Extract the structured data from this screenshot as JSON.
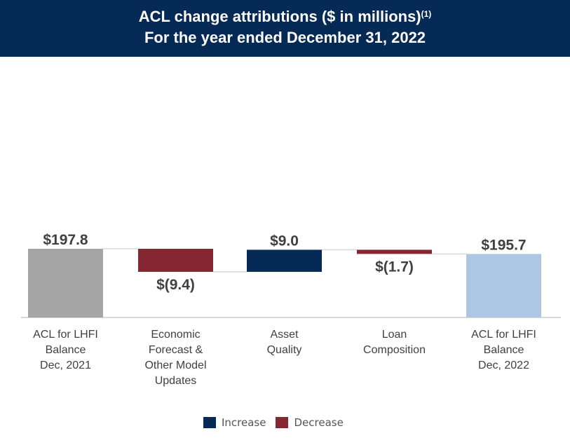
{
  "header": {
    "title": "ACL change attributions ($ in millions)",
    "footnote": "(1)",
    "subtitle": "For the year ended December 31, 2022"
  },
  "chart_data": {
    "type": "waterfall",
    "title": "ACL change attributions ($ in millions)",
    "subtitle": "For the year ended December 31, 2022",
    "categories": [
      "ACL for LHFI\nBalance\nDec, 2021",
      "Economic\nForecast &\nOther Model\nUpdates",
      "Asset\nQuality",
      "Loan\nComposition",
      "ACL for LHFI\nBalance\nDec, 2022"
    ],
    "values": [
      197.8,
      -9.4,
      9.0,
      -1.7,
      195.7
    ],
    "kinds": [
      "total",
      "delta",
      "delta",
      "delta",
      "total"
    ],
    "labels": [
      "$197.8",
      "$(9.4)",
      "$9.0",
      "$(1.7)",
      "$195.7"
    ],
    "ylim": [
      169.8,
      204.8
    ],
    "legend": [
      {
        "name": "Increase",
        "color": "#042a55"
      },
      {
        "name": "Decrease",
        "color": "#862632"
      }
    ],
    "colors": {
      "start_total": "#a5a5a5",
      "end_total": "#adc6e4",
      "increase": "#042a55",
      "decrease": "#862632",
      "connector": "#d9d9d9"
    }
  }
}
